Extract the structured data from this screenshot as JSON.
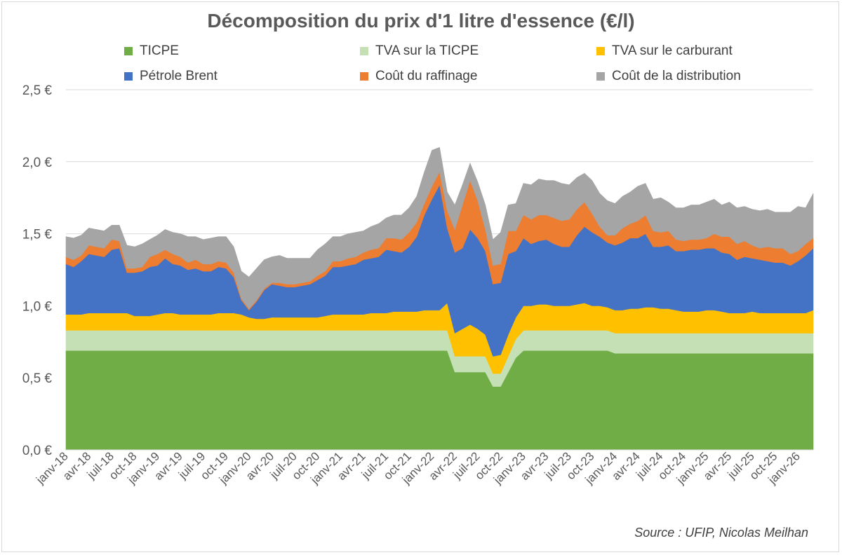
{
  "source": "Source : UFIP, Nicolas Meilhan",
  "chart_data": {
    "type": "area",
    "stacked": true,
    "title": "Décomposition du prix d'1 litre d'essence (€/l)",
    "xlabel": "",
    "ylabel": "",
    "ylim": [
      0,
      2.5
    ],
    "y_ticks": [
      "0,0 €",
      "0,5 €",
      "1,0 €",
      "1,5 €",
      "2,0 €",
      "2,5 €"
    ],
    "grid": true,
    "legend_position": "top",
    "x_tick_labels": [
      "janv-18",
      "avr-18",
      "juil-18",
      "oct-18",
      "janv-19",
      "avr-19",
      "juil-19",
      "oct-19",
      "janv-20",
      "avr-20",
      "juil-20",
      "oct-20",
      "janv-21",
      "avr-21",
      "juil-21",
      "oct-21",
      "janv-22",
      "avr-22",
      "juil-22",
      "oct-22",
      "janv-23",
      "avr-23",
      "juil-23",
      "oct-23",
      "janv-24",
      "avr-24",
      "juil-24",
      "oct-24",
      "janv-25",
      "avr-25",
      "juil-25",
      "oct-25",
      "janv-26"
    ],
    "series": [
      {
        "name": "TICPE",
        "color": "#70ad47",
        "values": [
          0.69,
          0.69,
          0.69,
          0.69,
          0.69,
          0.69,
          0.69,
          0.69,
          0.69,
          0.69,
          0.69,
          0.69,
          0.69,
          0.69,
          0.69,
          0.69,
          0.69,
          0.69,
          0.69,
          0.69,
          0.69,
          0.69,
          0.69,
          0.69,
          0.69,
          0.69,
          0.69,
          0.69,
          0.69,
          0.69,
          0.69,
          0.69,
          0.69,
          0.69,
          0.69,
          0.69,
          0.69,
          0.69,
          0.69,
          0.69,
          0.69,
          0.69,
          0.69,
          0.69,
          0.69,
          0.69,
          0.69,
          0.69,
          0.69,
          0.69,
          0.69,
          0.54,
          0.54,
          0.54,
          0.54,
          0.54,
          0.44,
          0.44,
          0.54,
          0.64,
          0.69,
          0.69,
          0.69,
          0.69,
          0.69,
          0.69,
          0.69,
          0.69,
          0.69,
          0.69,
          0.69,
          0.69,
          0.67,
          0.67,
          0.67,
          0.67,
          0.67,
          0.67,
          0.67,
          0.67,
          0.67,
          0.67,
          0.67,
          0.67,
          0.67,
          0.67,
          0.67,
          0.67,
          0.67,
          0.67,
          0.67,
          0.67,
          0.67,
          0.67,
          0.67,
          0.67,
          0.67,
          0.67,
          0.67
        ]
      },
      {
        "name": "TVA sur la TICPE",
        "color": "#c5e0b4",
        "values": [
          0.14,
          0.14,
          0.14,
          0.14,
          0.14,
          0.14,
          0.14,
          0.14,
          0.14,
          0.14,
          0.14,
          0.14,
          0.14,
          0.14,
          0.14,
          0.14,
          0.14,
          0.14,
          0.14,
          0.14,
          0.14,
          0.14,
          0.14,
          0.14,
          0.14,
          0.14,
          0.14,
          0.14,
          0.14,
          0.14,
          0.14,
          0.14,
          0.14,
          0.14,
          0.14,
          0.14,
          0.14,
          0.14,
          0.14,
          0.14,
          0.14,
          0.14,
          0.14,
          0.14,
          0.14,
          0.14,
          0.14,
          0.14,
          0.14,
          0.14,
          0.14,
          0.11,
          0.11,
          0.11,
          0.11,
          0.11,
          0.09,
          0.09,
          0.11,
          0.13,
          0.14,
          0.14,
          0.14,
          0.14,
          0.14,
          0.14,
          0.14,
          0.14,
          0.14,
          0.14,
          0.14,
          0.14,
          0.14,
          0.14,
          0.14,
          0.14,
          0.14,
          0.14,
          0.14,
          0.14,
          0.14,
          0.14,
          0.14,
          0.14,
          0.14,
          0.14,
          0.14,
          0.14,
          0.14,
          0.14,
          0.14,
          0.14,
          0.14,
          0.14,
          0.14,
          0.14,
          0.14,
          0.14,
          0.14
        ]
      },
      {
        "name": "TVA sur le carburant",
        "color": "#ffc000",
        "values": [
          0.11,
          0.11,
          0.11,
          0.12,
          0.12,
          0.12,
          0.12,
          0.12,
          0.12,
          0.1,
          0.1,
          0.1,
          0.11,
          0.12,
          0.12,
          0.11,
          0.11,
          0.11,
          0.11,
          0.11,
          0.12,
          0.12,
          0.12,
          0.11,
          0.09,
          0.08,
          0.08,
          0.09,
          0.09,
          0.09,
          0.09,
          0.09,
          0.09,
          0.09,
          0.1,
          0.11,
          0.11,
          0.11,
          0.11,
          0.11,
          0.12,
          0.12,
          0.12,
          0.13,
          0.13,
          0.13,
          0.13,
          0.14,
          0.14,
          0.14,
          0.19,
          0.16,
          0.19,
          0.22,
          0.19,
          0.15,
          0.12,
          0.13,
          0.15,
          0.15,
          0.17,
          0.17,
          0.18,
          0.18,
          0.17,
          0.17,
          0.17,
          0.18,
          0.19,
          0.17,
          0.17,
          0.16,
          0.16,
          0.16,
          0.17,
          0.17,
          0.18,
          0.18,
          0.17,
          0.17,
          0.16,
          0.15,
          0.15,
          0.15,
          0.16,
          0.16,
          0.15,
          0.14,
          0.14,
          0.14,
          0.15,
          0.14,
          0.14,
          0.14,
          0.14,
          0.14,
          0.14,
          0.14,
          0.16
        ]
      },
      {
        "name": "Pétrole Brent",
        "color": "#4472c4",
        "values": [
          0.35,
          0.33,
          0.37,
          0.41,
          0.4,
          0.39,
          0.44,
          0.45,
          0.28,
          0.3,
          0.31,
          0.34,
          0.34,
          0.38,
          0.34,
          0.34,
          0.31,
          0.32,
          0.3,
          0.3,
          0.32,
          0.31,
          0.25,
          0.1,
          0.05,
          0.12,
          0.2,
          0.23,
          0.22,
          0.21,
          0.21,
          0.22,
          0.23,
          0.26,
          0.28,
          0.33,
          0.33,
          0.34,
          0.35,
          0.38,
          0.38,
          0.39,
          0.44,
          0.42,
          0.41,
          0.45,
          0.52,
          0.66,
          0.77,
          0.87,
          0.52,
          0.56,
          0.56,
          0.66,
          0.63,
          0.58,
          0.5,
          0.5,
          0.56,
          0.46,
          0.47,
          0.43,
          0.44,
          0.45,
          0.43,
          0.41,
          0.41,
          0.48,
          0.53,
          0.51,
          0.48,
          0.45,
          0.45,
          0.47,
          0.49,
          0.49,
          0.51,
          0.42,
          0.43,
          0.44,
          0.41,
          0.42,
          0.43,
          0.43,
          0.43,
          0.43,
          0.41,
          0.41,
          0.37,
          0.39,
          0.37,
          0.37,
          0.36,
          0.35,
          0.35,
          0.33,
          0.36,
          0.4,
          0.43
        ]
      },
      {
        "name": "Coût du raffinage",
        "color": "#ed7d31",
        "values": [
          0.05,
          0.05,
          0.04,
          0.06,
          0.06,
          0.06,
          0.07,
          0.05,
          0.03,
          0.03,
          0.03,
          0.07,
          0.08,
          0.06,
          0.07,
          0.06,
          0.05,
          0.06,
          0.05,
          0.05,
          0.04,
          0.04,
          0.03,
          0.01,
          0.01,
          0.01,
          0.01,
          0.01,
          0.02,
          0.02,
          0.02,
          0.02,
          0.02,
          0.03,
          0.03,
          0.04,
          0.04,
          0.05,
          0.05,
          0.05,
          0.06,
          0.06,
          0.08,
          0.09,
          0.09,
          0.1,
          0.1,
          0.08,
          0.09,
          0.09,
          0.12,
          0.16,
          0.3,
          0.34,
          0.26,
          0.15,
          0.13,
          0.13,
          0.16,
          0.14,
          0.16,
          0.17,
          0.18,
          0.17,
          0.18,
          0.18,
          0.19,
          0.18,
          0.17,
          0.13,
          0.07,
          0.05,
          0.07,
          0.1,
          0.1,
          0.12,
          0.13,
          0.11,
          0.1,
          0.1,
          0.08,
          0.07,
          0.07,
          0.07,
          0.07,
          0.1,
          0.11,
          0.12,
          0.11,
          0.11,
          0.09,
          0.08,
          0.1,
          0.1,
          0.1,
          0.08,
          0.07,
          0.08,
          0.07
        ]
      },
      {
        "name": "Coût de la distribution",
        "color": "#a5a5a5",
        "values": [
          0.14,
          0.15,
          0.14,
          0.12,
          0.12,
          0.12,
          0.1,
          0.11,
          0.16,
          0.15,
          0.16,
          0.12,
          0.13,
          0.14,
          0.15,
          0.16,
          0.18,
          0.16,
          0.17,
          0.18,
          0.17,
          0.18,
          0.18,
          0.19,
          0.22,
          0.22,
          0.2,
          0.18,
          0.19,
          0.18,
          0.18,
          0.17,
          0.16,
          0.18,
          0.19,
          0.17,
          0.17,
          0.17,
          0.17,
          0.15,
          0.16,
          0.17,
          0.14,
          0.16,
          0.17,
          0.17,
          0.18,
          0.22,
          0.25,
          0.17,
          0.13,
          0.17,
          0.14,
          0.12,
          0.13,
          0.17,
          0.18,
          0.22,
          0.18,
          0.19,
          0.22,
          0.24,
          0.25,
          0.24,
          0.26,
          0.26,
          0.24,
          0.22,
          0.2,
          0.23,
          0.23,
          0.24,
          0.22,
          0.22,
          0.22,
          0.24,
          0.22,
          0.22,
          0.24,
          0.2,
          0.22,
          0.23,
          0.24,
          0.24,
          0.25,
          0.24,
          0.22,
          0.24,
          0.25,
          0.24,
          0.25,
          0.26,
          0.26,
          0.25,
          0.25,
          0.29,
          0.31,
          0.25,
          0.31
        ]
      }
    ]
  }
}
